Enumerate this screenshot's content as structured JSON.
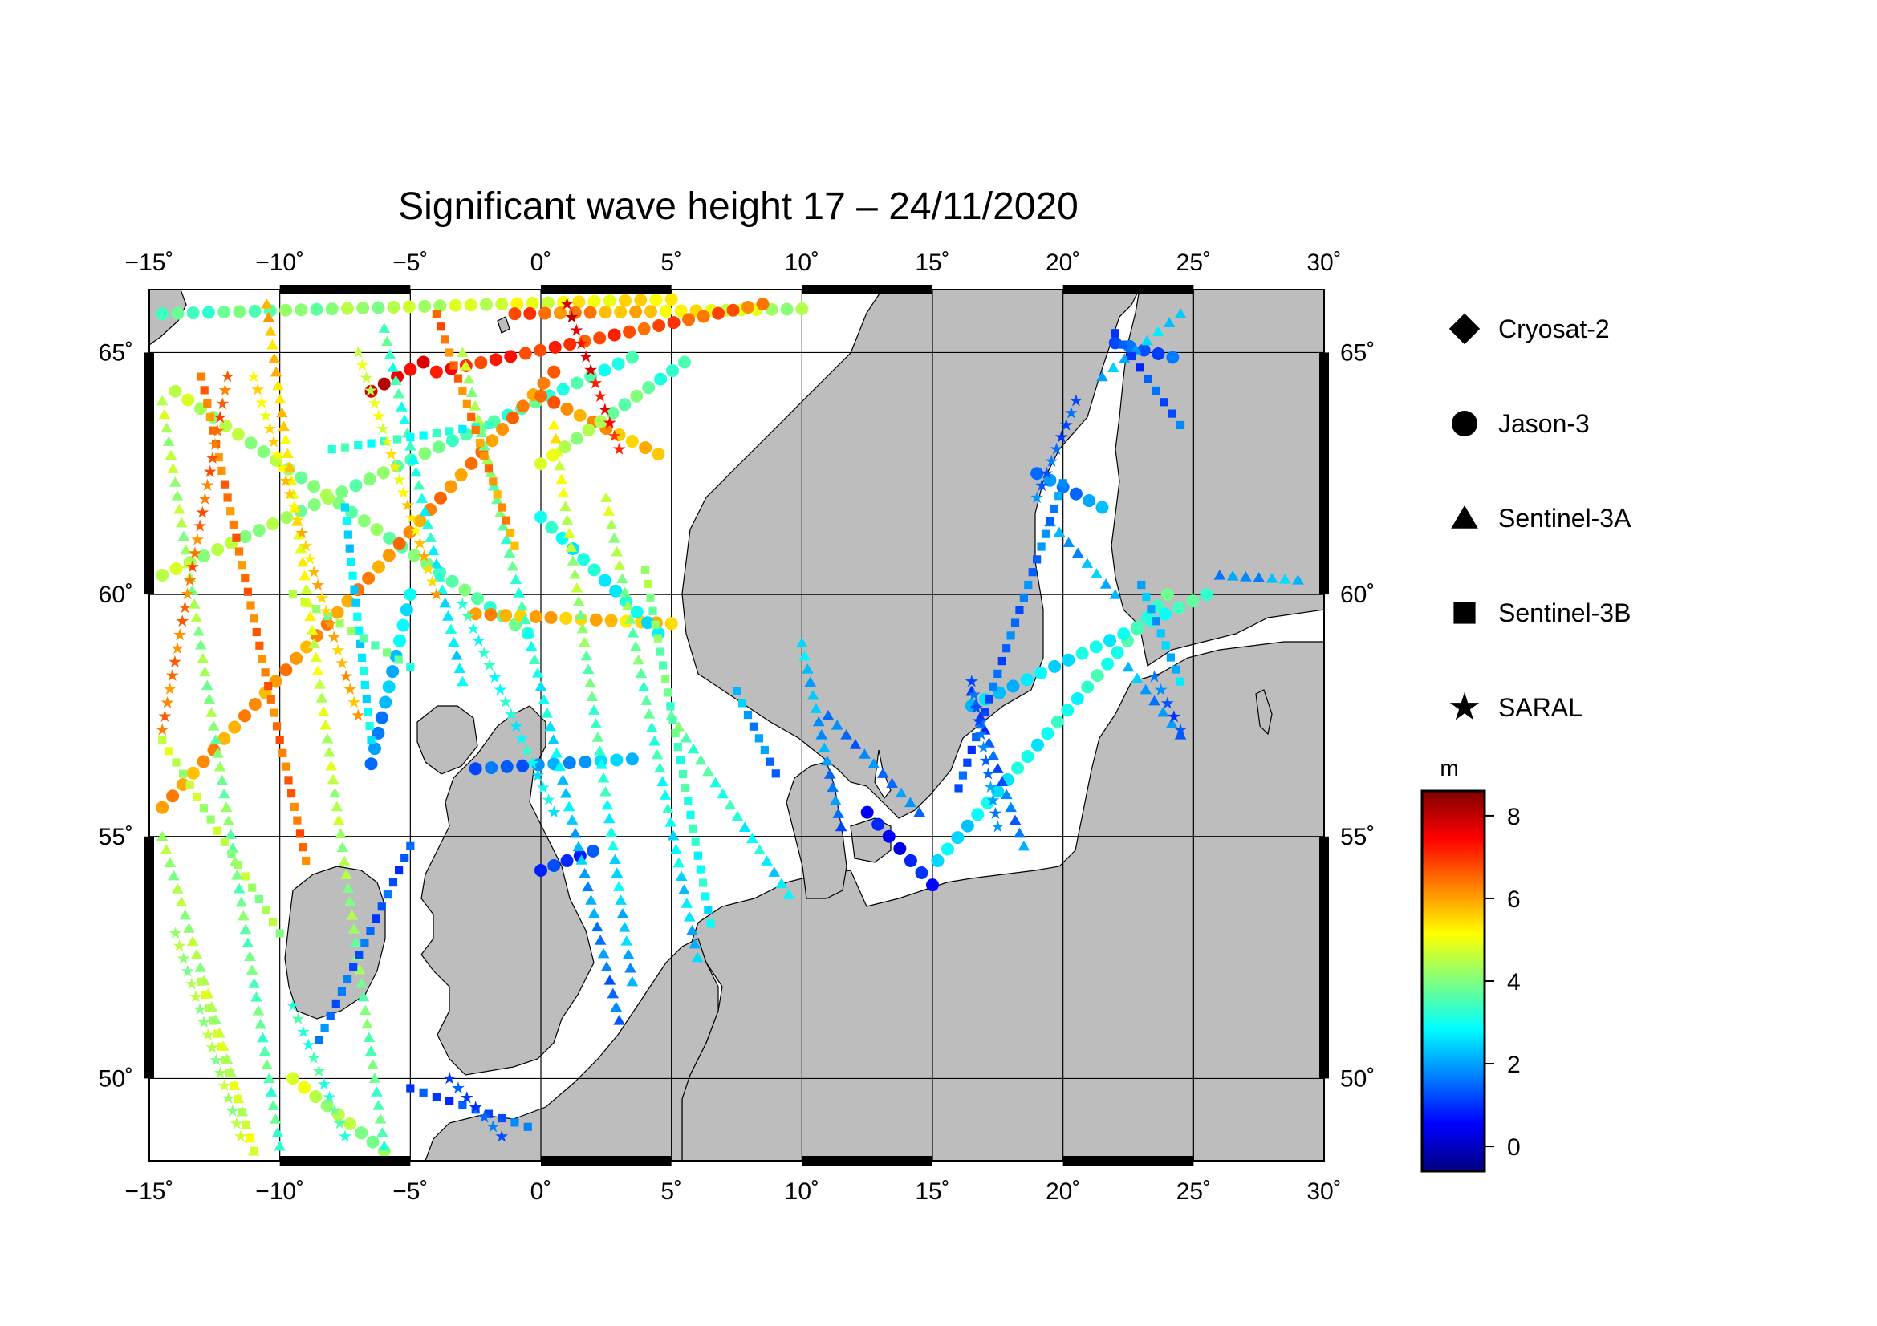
{
  "title": "Significant wave height 17 – 24/11/2020",
  "map": {
    "lon_range": [
      -15,
      30
    ],
    "lat_range": [
      48.3,
      66.3
    ],
    "lon_ticks": [
      -15,
      -10,
      -5,
      0,
      5,
      10,
      15,
      20,
      25,
      30
    ],
    "lat_ticks": [
      50,
      55,
      60,
      65
    ],
    "lon_tick_labels": [
      "−15˚",
      "−10˚",
      "−5˚",
      "0˚",
      "5˚",
      "10˚",
      "15˚",
      "20˚",
      "25˚",
      "30˚"
    ],
    "lat_tick_labels": [
      "50˚",
      "55˚",
      "60˚",
      "65˚"
    ],
    "land_color": "#bdbdbd",
    "sea_color": "#ffffff",
    "gridlines": true,
    "frame_style": "alternating black/white border"
  },
  "legend": {
    "placement": "right",
    "items": [
      {
        "label": "Cryosat-2",
        "symbol": "diamond"
      },
      {
        "label": "Jason-3",
        "symbol": "circle"
      },
      {
        "label": "Sentinel-3A",
        "symbol": "triangle"
      },
      {
        "label": "Sentinel-3B",
        "symbol": "square"
      },
      {
        "label": "SARAL",
        "symbol": "star"
      }
    ]
  },
  "colorbar": {
    "unit": "m",
    "range": [
      -0.6,
      8.6
    ],
    "ticks": [
      0,
      2,
      4,
      6,
      8
    ],
    "tick_labels": [
      "0",
      "2",
      "4",
      "6",
      "8"
    ],
    "colormap": "jet",
    "stops": [
      "#00007f",
      "#0000ff",
      "#007fff",
      "#00ffff",
      "#7fff7f",
      "#ffff00",
      "#ff7f00",
      "#ff0000",
      "#7f0000"
    ]
  },
  "chart_data": {
    "type": "scatter",
    "title": "Significant wave height 17 – 24/11/2020",
    "x_label": "",
    "y_label": "",
    "xlim": [
      -15,
      30
    ],
    "ylim": [
      48.3,
      66.3
    ],
    "value_unit": "m",
    "series": [
      {
        "name": "Jason-3",
        "symbol": "circle",
        "tracks": [
          {
            "from": [
              -14.5,
              65.8
            ],
            "to": [
              5.0,
              66.1
            ],
            "v": [
              3.4,
              5.5
            ]
          },
          {
            "from": [
              -14.0,
              64.2
            ],
            "to": [
              -0.5,
              59.2
            ],
            "v": [
              4.5,
              3.5
            ]
          },
          {
            "from": [
              -14.5,
              60.4
            ],
            "to": [
              3.5,
              64.9
            ],
            "v": [
              4.5,
              3.2
            ]
          },
          {
            "from": [
              -14.5,
              55.6
            ],
            "to": [
              0.5,
              64.6
            ],
            "v": [
              6.0,
              6.3
            ]
          },
          {
            "from": [
              -2.5,
              59.6
            ],
            "to": [
              5.0,
              59.4
            ],
            "v": [
              6.0,
              5.5
            ]
          },
          {
            "from": [
              -1.0,
              65.8
            ],
            "to": [
              10.0,
              65.9
            ],
            "v": [
              6.8,
              4.2
            ]
          },
          {
            "from": [
              -4.0,
              64.6
            ],
            "to": [
              8.5,
              66.0
            ],
            "v": [
              7.2,
              6.5
            ]
          },
          {
            "from": [
              0.0,
              64.1
            ],
            "to": [
              4.5,
              62.9
            ],
            "v": [
              6.5,
              5.5
            ]
          },
          {
            "from": [
              -6.5,
              64.2
            ],
            "to": [
              -4.5,
              64.8
            ],
            "v": [
              7.8,
              7.6
            ]
          },
          {
            "from": [
              0.0,
              62.7
            ],
            "to": [
              5.5,
              64.8
            ],
            "v": [
              4.8,
              3.2
            ]
          },
          {
            "from": [
              0.0,
              61.6
            ],
            "to": [
              4.5,
              59.2
            ],
            "v": [
              3.0,
              2.8
            ]
          },
          {
            "from": [
              -6.5,
              56.5
            ],
            "to": [
              -5.0,
              60.0
            ],
            "v": [
              1.5,
              3.0
            ]
          },
          {
            "from": [
              -2.5,
              56.4
            ],
            "to": [
              3.5,
              56.6
            ],
            "v": [
              1.2,
              2.5
            ]
          },
          {
            "from": [
              0.0,
              54.3
            ],
            "to": [
              2.0,
              54.7
            ],
            "v": [
              0.8,
              1.2
            ]
          },
          {
            "from": [
              12.5,
              55.5
            ],
            "to": [
              15.0,
              54.0
            ],
            "v": [
              0.5,
              0.8
            ]
          },
          {
            "from": [
              15.2,
              54.5
            ],
            "to": [
              24.0,
              60.0
            ],
            "v": [
              2.5,
              3.5
            ]
          },
          {
            "from": [
              16.5,
              57.7
            ],
            "to": [
              25.5,
              60.0
            ],
            "v": [
              2.2,
              3.5
            ]
          },
          {
            "from": [
              22.0,
              65.2
            ],
            "to": [
              24.2,
              64.9
            ],
            "v": [
              1.2,
              1.5
            ]
          },
          {
            "from": [
              19.0,
              62.5
            ],
            "to": [
              21.5,
              61.8
            ],
            "v": [
              1.5,
              2.0
            ]
          },
          {
            "from": [
              -9.5,
              50.0
            ],
            "to": [
              -6.0,
              48.5
            ],
            "v": [
              4.8,
              4.0
            ]
          }
        ]
      },
      {
        "name": "Sentinel-3A",
        "symbol": "triangle",
        "tracks": [
          {
            "from": [
              -14.5,
              64.0
            ],
            "to": [
              -10.0,
              48.6
            ],
            "v": [
              4.5,
              3.5
            ]
          },
          {
            "from": [
              -10.5,
              66.0
            ],
            "to": [
              -6.0,
              48.6
            ],
            "v": [
              5.8,
              3.5
            ]
          },
          {
            "from": [
              -6.0,
              65.5
            ],
            "to": [
              -3.0,
              58.2
            ],
            "v": [
              3.5,
              2.6
            ]
          },
          {
            "from": [
              -3.0,
              65.0
            ],
            "to": [
              3.0,
              51.2
            ],
            "v": [
              4.5,
              1.4
            ]
          },
          {
            "from": [
              0.5,
              63.5
            ],
            "to": [
              3.5,
              52.0
            ],
            "v": [
              5.2,
              2.0
            ]
          },
          {
            "from": [
              2.5,
              62.0
            ],
            "to": [
              6.0,
              52.5
            ],
            "v": [
              4.6,
              2.2
            ]
          },
          {
            "from": [
              5.0,
              57.5
            ],
            "to": [
              9.5,
              53.8
            ],
            "v": [
              3.8,
              2.5
            ]
          },
          {
            "from": [
              10.0,
              59.0
            ],
            "to": [
              11.5,
              55.2
            ],
            "v": [
              2.5,
              1.5
            ]
          },
          {
            "from": [
              11.0,
              57.5
            ],
            "to": [
              14.5,
              55.5
            ],
            "v": [
              1.5,
              1.8
            ]
          },
          {
            "from": [
              16.5,
              58.0
            ],
            "to": [
              18.5,
              54.8
            ],
            "v": [
              1.0,
              1.8
            ]
          },
          {
            "from": [
              19.5,
              61.5
            ],
            "to": [
              22.0,
              60.0
            ],
            "v": [
              1.8,
              2.4
            ]
          },
          {
            "from": [
              21.5,
              64.5
            ],
            "to": [
              24.5,
              65.8
            ],
            "v": [
              2.0,
              2.6
            ]
          },
          {
            "from": [
              22.5,
              58.5
            ],
            "to": [
              24.5,
              57.1
            ],
            "v": [
              2.2,
              1.6
            ]
          },
          {
            "from": [
              26.0,
              60.4
            ],
            "to": [
              29.0,
              60.3
            ],
            "v": [
              1.6,
              2.4
            ]
          },
          {
            "from": [
              -14.5,
              55.0
            ],
            "to": [
              -11.0,
              48.5
            ],
            "v": [
              4.2,
              4.6
            ]
          }
        ]
      },
      {
        "name": "Sentinel-3B",
        "symbol": "square",
        "tracks": [
          {
            "from": [
              -13.0,
              64.5
            ],
            "to": [
              -9.0,
              54.5
            ],
            "v": [
              6.3,
              6.5
            ]
          },
          {
            "from": [
              -8.0,
              63.0
            ],
            "to": [
              -2.0,
              63.5
            ],
            "v": [
              3.2,
              3.0
            ]
          },
          {
            "from": [
              -7.5,
              61.8
            ],
            "to": [
              -6.5,
              57.0
            ],
            "v": [
              2.5,
              2.8
            ]
          },
          {
            "from": [
              -4.0,
              65.8
            ],
            "to": [
              -1.0,
              61.0
            ],
            "v": [
              6.5,
              6.0
            ]
          },
          {
            "from": [
              -9.5,
              60.0
            ],
            "to": [
              -5.0,
              58.5
            ],
            "v": [
              4.5,
              3.5
            ]
          },
          {
            "from": [
              -14.5,
              57.0
            ],
            "to": [
              -10.0,
              53.0
            ],
            "v": [
              4.6,
              4.2
            ]
          },
          {
            "from": [
              -8.5,
              50.8
            ],
            "to": [
              -5.0,
              54.8
            ],
            "v": [
              1.6,
              1.2
            ]
          },
          {
            "from": [
              -5.0,
              49.8
            ],
            "to": [
              -0.5,
              49.0
            ],
            "v": [
              1.0,
              1.6
            ]
          },
          {
            "from": [
              4.0,
              60.5
            ],
            "to": [
              6.5,
              53.2
            ],
            "v": [
              4.2,
              2.8
            ]
          },
          {
            "from": [
              7.5,
              58.0
            ],
            "to": [
              9.0,
              56.3
            ],
            "v": [
              2.2,
              1.6
            ]
          },
          {
            "from": [
              16.0,
              56.0
            ],
            "to": [
              20.0,
              62.3
            ],
            "v": [
              1.2,
              1.8
            ]
          },
          {
            "from": [
              22.0,
              65.4
            ],
            "to": [
              24.5,
              63.5
            ],
            "v": [
              1.0,
              1.5
            ]
          },
          {
            "from": [
              23.0,
              60.2
            ],
            "to": [
              24.5,
              58.2
            ],
            "v": [
              2.0,
              2.4
            ]
          },
          {
            "from": [
              -13.0,
              52.0
            ],
            "to": [
              -11.0,
              48.5
            ],
            "v": [
              4.5,
              4.8
            ]
          }
        ]
      },
      {
        "name": "SARAL",
        "symbol": "star",
        "tracks": [
          {
            "from": [
              -14.5,
              57.2
            ],
            "to": [
              -12.0,
              64.5
            ],
            "v": [
              6.3,
              6.6
            ]
          },
          {
            "from": [
              -11.0,
              64.5
            ],
            "to": [
              -7.0,
              57.5
            ],
            "v": [
              5.2,
              6.0
            ]
          },
          {
            "from": [
              -7.0,
              65.0
            ],
            "to": [
              -4.0,
              60.0
            ],
            "v": [
              4.6,
              5.8
            ]
          },
          {
            "from": [
              -3.0,
              59.8
            ],
            "to": [
              0.5,
              55.5
            ],
            "v": [
              3.2,
              2.8
            ]
          },
          {
            "from": [
              1.0,
              66.0
            ],
            "to": [
              3.0,
              63.0
            ],
            "v": [
              7.8,
              7.2
            ]
          },
          {
            "from": [
              -14.0,
              53.0
            ],
            "to": [
              -11.5,
              48.8
            ],
            "v": [
              4.2,
              4.4
            ]
          },
          {
            "from": [
              -9.5,
              51.5
            ],
            "to": [
              -7.5,
              48.8
            ],
            "v": [
              3.2,
              3.5
            ]
          },
          {
            "from": [
              16.5,
              58.2
            ],
            "to": [
              17.5,
              55.2
            ],
            "v": [
              1.2,
              2.0
            ]
          },
          {
            "from": [
              20.5,
              64.0
            ],
            "to": [
              19.0,
              62.0
            ],
            "v": [
              1.2,
              1.6
            ]
          },
          {
            "from": [
              -3.5,
              50.0
            ],
            "to": [
              -1.5,
              48.8
            ],
            "v": [
              1.0,
              1.5
            ]
          },
          {
            "from": [
              23.5,
              58.3
            ],
            "to": [
              24.5,
              57.2
            ],
            "v": [
              1.6,
              1.2
            ]
          }
        ]
      },
      {
        "name": "Cryosat-2",
        "symbol": "diamond",
        "tracks": []
      }
    ]
  }
}
